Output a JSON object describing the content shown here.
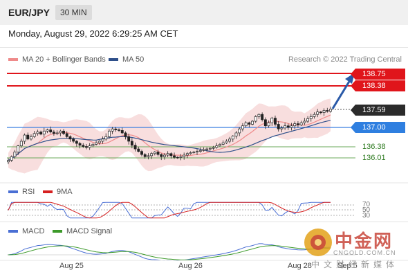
{
  "header": {
    "symbol": "EUR/JPY",
    "timeframe": "30 MIN",
    "datetime": "Monday, August 29, 2022 6:29:25 AM CET"
  },
  "main_legend": [
    {
      "label": "MA 20 + Bollinger Bands",
      "color": "#ef8a8a"
    },
    {
      "label": "MA 50",
      "color": "#2e4f8a"
    }
  ],
  "credit": "Research © 2022 Trading Central",
  "price_levels": {
    "r2": "138.75",
    "r1": "138.38",
    "last": "137.59",
    "pivot": "137.00",
    "s1": "136.38",
    "s2": "136.01"
  },
  "rsi": {
    "legend": [
      {
        "label": "RSI",
        "color": "#4a6fd4"
      },
      {
        "label": "9MA",
        "color": "#d62020"
      }
    ],
    "levels": [
      "70",
      "50",
      "30"
    ]
  },
  "macd": {
    "legend": [
      {
        "label": "MACD",
        "color": "#4a6fd4"
      },
      {
        "label": "MACD Signal",
        "color": "#3c9a2a"
      }
    ]
  },
  "x_axis": [
    "Aug 25",
    "Aug 26",
    "Aug 28",
    "Sep 5"
  ],
  "colors": {
    "resistance": "#e0151b",
    "pivot": "#3a7fe0",
    "support": "#6aa85a",
    "bollinger_fill": "#f8dcdc",
    "ma20": "#ef8a8a",
    "ma50": "#2e4f8a",
    "candle": "#222222"
  },
  "watermark": {
    "name": "中金网",
    "url": "CNGOLD.COM.CN",
    "subtitle": "中文财经新媒体",
    "logo_icon": "gold-coin-logo-icon"
  },
  "chart_data": {
    "type": "line",
    "title": "EUR/JPY 30 MIN",
    "price_range": [
      135.5,
      138.95
    ],
    "series": [
      {
        "name": "MA 20 + Bollinger Bands",
        "description_visible": true
      },
      {
        "name": "MA 50"
      }
    ],
    "close_path": [
      135.93,
      136.05,
      136.2,
      136.4,
      136.55,
      136.75,
      136.62,
      136.7,
      136.8,
      136.85,
      136.78,
      136.88,
      136.92,
      136.85,
      136.8,
      136.82,
      136.88,
      136.8,
      136.7,
      136.62,
      136.55,
      136.48,
      136.42,
      136.38,
      136.35,
      136.4,
      136.45,
      136.5,
      136.55,
      136.62,
      136.7,
      136.88,
      136.95,
      136.92,
      136.9,
      136.82,
      136.7,
      136.55,
      136.42,
      136.3,
      136.22,
      136.12,
      136.05,
      136.08,
      136.15,
      136.2,
      136.12,
      136.05,
      136.1,
      136.15,
      136.08,
      136.03,
      136.02,
      136.05,
      136.1,
      136.15,
      136.18,
      136.2,
      136.22,
      136.25,
      136.28,
      136.3,
      136.32,
      136.35,
      136.4,
      136.45,
      136.5,
      136.55,
      136.62,
      136.72,
      136.82,
      136.95,
      137.05,
      137.15,
      137.1,
      137.2,
      137.35,
      137.42,
      137.25,
      137.05,
      137.15,
      137.3,
      137.1,
      136.95,
      136.98,
      137.05,
      137.0,
      137.05,
      137.12,
      137.08,
      137.15,
      137.2,
      137.28,
      137.35,
      137.42,
      137.5,
      137.48,
      137.55,
      137.52,
      137.59
    ],
    "levels": {
      "resistance_2": 138.75,
      "resistance_1": 138.38,
      "last": 137.59,
      "pivot": 137.0,
      "support_1": 136.38,
      "support_2": 136.01
    },
    "rsi_levels": [
      70,
      50,
      30
    ],
    "x_labels": [
      "Aug 25",
      "Aug 26",
      "Aug 28",
      "Sep 5"
    ]
  }
}
